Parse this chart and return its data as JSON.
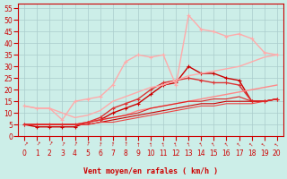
{
  "background_color": "#cceee8",
  "grid_color": "#aacccc",
  "xlabel": "Vent moyen/en rafales ( km/h )",
  "xlabel_color": "#cc0000",
  "ylabel_color": "#cc0000",
  "x": [
    0,
    1,
    2,
    3,
    4,
    5,
    6,
    7,
    8,
    9,
    10,
    11,
    12,
    13,
    14,
    15,
    16,
    17,
    18,
    19,
    20
  ],
  "ylim": [
    0,
    57
  ],
  "yticks": [
    0,
    5,
    10,
    15,
    20,
    25,
    30,
    35,
    40,
    45,
    50,
    55
  ],
  "lines": [
    {
      "y": [
        5,
        4,
        4,
        4,
        4,
        6,
        7,
        10,
        12,
        14,
        18,
        22,
        23,
        30,
        27,
        27,
        25,
        24,
        15,
        15,
        16
      ],
      "color": "#cc0000",
      "lw": 1.0,
      "marker": "+",
      "ms": 3
    },
    {
      "y": [
        5,
        5,
        5,
        5,
        5,
        6,
        8,
        12,
        14,
        16,
        20,
        23,
        24,
        25,
        24,
        23,
        23,
        22,
        15,
        15,
        16
      ],
      "color": "#dd3333",
      "lw": 1.0,
      "marker": "+",
      "ms": 3
    },
    {
      "y": [
        13,
        12,
        12,
        10,
        8,
        9,
        11,
        15,
        17,
        19,
        21,
        22,
        24,
        26,
        27,
        28,
        29,
        30,
        32,
        34,
        35
      ],
      "color": "#ffaaaa",
      "lw": 1.0,
      "marker": null,
      "ms": 0
    },
    {
      "y": [
        13,
        12,
        12,
        7,
        15,
        16,
        17,
        22,
        32,
        35,
        34,
        35,
        22,
        52,
        46,
        45,
        43,
        44,
        42,
        36,
        35
      ],
      "color": "#ffaaaa",
      "lw": 1.0,
      "marker": "+",
      "ms": 3
    },
    {
      "y": [
        5,
        5,
        5,
        5,
        5,
        6,
        7,
        8,
        9,
        11,
        12,
        13,
        14,
        15,
        16,
        17,
        18,
        19,
        20,
        21,
        22
      ],
      "color": "#ff8888",
      "lw": 1.0,
      "marker": null,
      "ms": 0
    },
    {
      "y": [
        5,
        5,
        5,
        5,
        5,
        5,
        6,
        7,
        8,
        9,
        10,
        11,
        12,
        13,
        14,
        14,
        15,
        15,
        15,
        15,
        16
      ],
      "color": "#cc0000",
      "lw": 0.8,
      "marker": null,
      "ms": 0
    },
    {
      "y": [
        5,
        5,
        5,
        5,
        5,
        5,
        6,
        6,
        7,
        8,
        9,
        10,
        11,
        12,
        13,
        13,
        14,
        14,
        14,
        15,
        16
      ],
      "color": "#ee4444",
      "lw": 0.8,
      "marker": null,
      "ms": 0
    },
    {
      "y": [
        5,
        5,
        5,
        5,
        5,
        6,
        7,
        8,
        9,
        10,
        12,
        13,
        14,
        15,
        15,
        16,
        16,
        17,
        15,
        15,
        16
      ],
      "color": "#dd2222",
      "lw": 0.8,
      "marker": null,
      "ms": 0
    }
  ],
  "xtick_symbols": [
    "↗",
    "↘",
    "→",
    "↘",
    "↘",
    "↘",
    "↖",
    "↖",
    "↖",
    "↖",
    "↖",
    "↖",
    "↖",
    "↖",
    "↖",
    "↖",
    "↖",
    "↖",
    "↖",
    "↖",
    "↖"
  ],
  "xticklabels": [
    "0",
    "1",
    "2",
    "3",
    "4",
    "5",
    "6",
    "7",
    "8",
    "9",
    "10",
    "11",
    "12",
    "13",
    "14",
    "15",
    "16",
    "17",
    "18",
    "19",
    "20"
  ]
}
